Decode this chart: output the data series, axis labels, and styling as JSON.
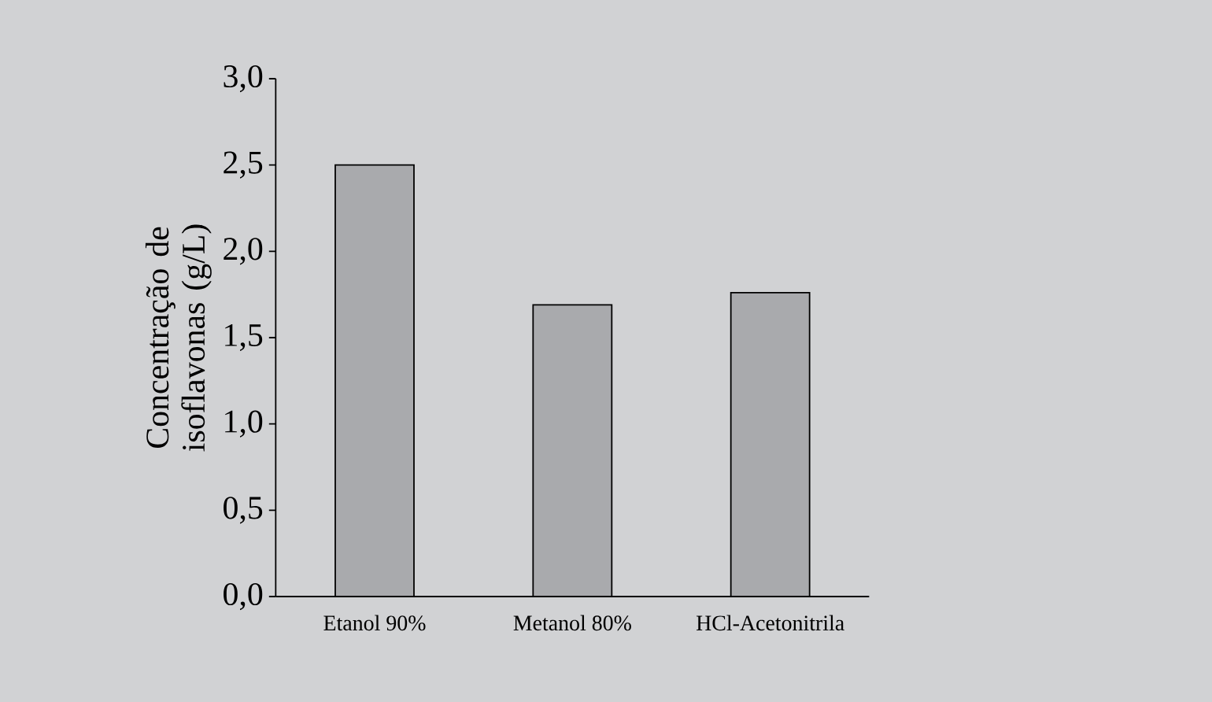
{
  "chart_data": {
    "type": "bar",
    "ylabel": "Concentração de isoflavonas (g/L)",
    "categories": [
      "Etanol 90%",
      "Metanol 80%",
      "HCl-Acetonitrila"
    ],
    "values": [
      2.5,
      1.69,
      1.76
    ],
    "color": "#a9aaad",
    "ylim": [
      0,
      3
    ],
    "yticks": [
      {
        "value": 0,
        "label": "0,0"
      },
      {
        "value": 0.5,
        "label": "0,5"
      },
      {
        "value": 1,
        "label": "1,0"
      },
      {
        "value": 1.5,
        "label": "1,5"
      },
      {
        "value": 2,
        "label": "2,0"
      },
      {
        "value": 2.5,
        "label": "2,5"
      },
      {
        "value": 3,
        "label": "3,0"
      }
    ],
    "grid": false
  }
}
